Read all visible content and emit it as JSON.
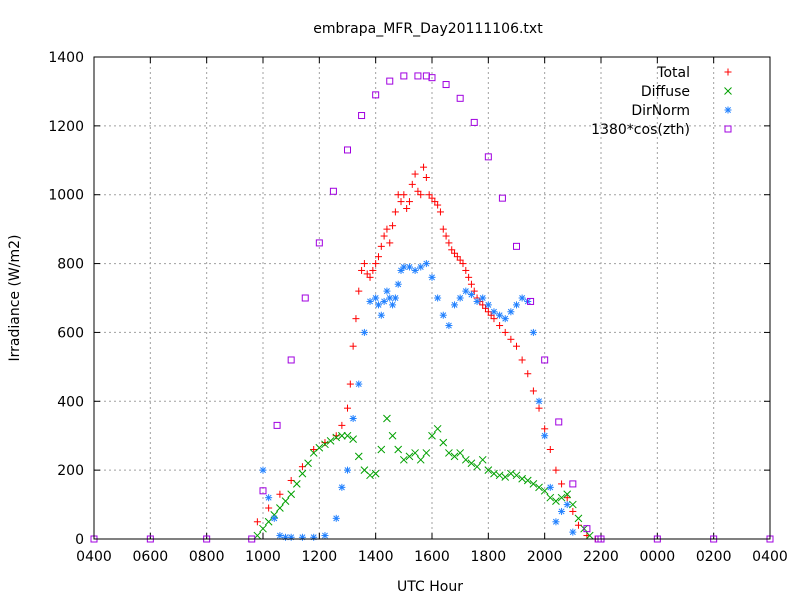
{
  "chart_data": {
    "type": "scatter",
    "title": "embrapa_MFR_Day20111106.txt",
    "xlabel": "UTC Hour",
    "ylabel": "Irradiance (W/m2)",
    "xlim": [
      4,
      28
    ],
    "ylim": [
      0,
      1400
    ],
    "x_ticks": [
      {
        "x": 4,
        "label": "0400"
      },
      {
        "x": 6,
        "label": "0600"
      },
      {
        "x": 8,
        "label": "0800"
      },
      {
        "x": 10,
        "label": "1000"
      },
      {
        "x": 12,
        "label": "1200"
      },
      {
        "x": 14,
        "label": "1400"
      },
      {
        "x": 16,
        "label": "1600"
      },
      {
        "x": 18,
        "label": "1800"
      },
      {
        "x": 20,
        "label": "2000"
      },
      {
        "x": 22,
        "label": "2200"
      },
      {
        "x": 24,
        "label": "0000"
      },
      {
        "x": 26,
        "label": "0200"
      },
      {
        "x": 28,
        "label": "0400"
      }
    ],
    "y_ticks": [
      0,
      200,
      400,
      600,
      800,
      1000,
      1200,
      1400
    ],
    "grid": true,
    "legend_position": "top-right",
    "series": [
      {
        "name": "Total",
        "marker": "+",
        "color": "#ff0000",
        "x": [
          9.8,
          10.2,
          10.6,
          11.0,
          11.4,
          11.8,
          12.2,
          12.6,
          12.8,
          13.0,
          13.1,
          13.2,
          13.3,
          13.4,
          13.5,
          13.6,
          13.7,
          13.8,
          13.9,
          14.0,
          14.1,
          14.2,
          14.3,
          14.4,
          14.5,
          14.6,
          14.7,
          14.8,
          14.9,
          15.0,
          15.1,
          15.2,
          15.3,
          15.4,
          15.5,
          15.6,
          15.7,
          15.8,
          15.9,
          16.0,
          16.1,
          16.2,
          16.3,
          16.4,
          16.5,
          16.6,
          16.7,
          16.8,
          16.9,
          17.0,
          17.1,
          17.2,
          17.3,
          17.4,
          17.5,
          17.6,
          17.7,
          17.8,
          17.9,
          18.0,
          18.1,
          18.2,
          18.4,
          18.6,
          18.8,
          19.0,
          19.2,
          19.4,
          19.6,
          19.8,
          20.0,
          20.2,
          20.4,
          20.6,
          20.8,
          21.0,
          21.2,
          21.5,
          21.8
        ],
        "y": [
          50,
          90,
          130,
          170,
          210,
          260,
          280,
          300,
          330,
          380,
          450,
          560,
          640,
          720,
          780,
          800,
          770,
          760,
          780,
          800,
          820,
          850,
          880,
          900,
          860,
          910,
          950,
          1000,
          980,
          1000,
          960,
          980,
          1030,
          1060,
          1010,
          1000,
          1080,
          1050,
          1000,
          990,
          980,
          970,
          950,
          900,
          880,
          860,
          840,
          830,
          820,
          810,
          800,
          780,
          760,
          740,
          720,
          700,
          690,
          680,
          670,
          660,
          650,
          640,
          620,
          600,
          580,
          560,
          520,
          480,
          430,
          380,
          320,
          260,
          200,
          160,
          120,
          80,
          40,
          10,
          0
        ]
      },
      {
        "name": "Diffuse",
        "marker": "x",
        "color": "#00a000",
        "x": [
          9.8,
          10.0,
          10.2,
          10.4,
          10.6,
          10.8,
          11.0,
          11.2,
          11.4,
          11.6,
          11.8,
          12.0,
          12.2,
          12.4,
          12.6,
          12.8,
          13.0,
          13.2,
          13.4,
          13.6,
          13.8,
          14.0,
          14.2,
          14.4,
          14.6,
          14.8,
          15.0,
          15.2,
          15.4,
          15.6,
          15.8,
          16.0,
          16.2,
          16.4,
          16.6,
          16.8,
          17.0,
          17.2,
          17.4,
          17.6,
          17.8,
          18.0,
          18.2,
          18.4,
          18.6,
          18.8,
          19.0,
          19.2,
          19.4,
          19.6,
          19.8,
          20.0,
          20.2,
          20.4,
          20.6,
          20.8,
          21.0,
          21.2,
          21.4,
          21.6
        ],
        "y": [
          10,
          30,
          50,
          70,
          90,
          110,
          130,
          160,
          190,
          220,
          250,
          265,
          275,
          285,
          295,
          300,
          300,
          290,
          240,
          200,
          185,
          190,
          260,
          350,
          300,
          260,
          230,
          240,
          250,
          230,
          250,
          300,
          320,
          280,
          250,
          240,
          250,
          230,
          220,
          210,
          230,
          200,
          190,
          185,
          180,
          190,
          185,
          175,
          170,
          160,
          150,
          140,
          120,
          110,
          120,
          130,
          100,
          60,
          30,
          10
        ]
      },
      {
        "name": "DirNorm",
        "marker": "*",
        "color": "#2080ff",
        "x": [
          10.0,
          10.2,
          10.4,
          10.6,
          10.8,
          11.0,
          11.4,
          11.8,
          12.2,
          12.6,
          12.8,
          13.0,
          13.2,
          13.4,
          13.6,
          13.8,
          14.0,
          14.1,
          14.2,
          14.3,
          14.4,
          14.5,
          14.6,
          14.7,
          14.8,
          14.9,
          15.0,
          15.2,
          15.4,
          15.6,
          15.8,
          16.0,
          16.2,
          16.4,
          16.6,
          16.8,
          17.0,
          17.2,
          17.4,
          17.6,
          17.8,
          18.0,
          18.2,
          18.4,
          18.6,
          18.8,
          19.0,
          19.2,
          19.4,
          19.6,
          19.8,
          20.0,
          20.2,
          20.4,
          20.6,
          20.8,
          21.0
        ],
        "y": [
          200,
          120,
          60,
          10,
          5,
          5,
          5,
          5,
          10,
          60,
          150,
          200,
          350,
          450,
          600,
          690,
          700,
          680,
          650,
          690,
          720,
          700,
          680,
          700,
          740,
          780,
          790,
          790,
          780,
          790,
          800,
          760,
          700,
          650,
          620,
          680,
          700,
          720,
          710,
          690,
          700,
          680,
          660,
          650,
          640,
          660,
          680,
          700,
          690,
          600,
          400,
          300,
          150,
          50,
          80,
          100,
          20
        ]
      },
      {
        "name": "1380*cos(zth)",
        "marker": "square",
        "color": "#a000e0",
        "x": [
          4.0,
          6.0,
          8.0,
          9.6,
          10.0,
          10.5,
          11.0,
          11.5,
          12.0,
          12.5,
          13.0,
          13.5,
          14.0,
          14.5,
          15.0,
          15.5,
          15.8,
          16.0,
          16.5,
          17.0,
          17.5,
          18.0,
          18.5,
          19.0,
          19.5,
          20.0,
          20.5,
          21.0,
          21.5,
          21.9,
          22.0,
          24.0,
          26.0,
          28.0
        ],
        "y": [
          0,
          0,
          0,
          0,
          140,
          330,
          520,
          700,
          860,
          1010,
          1130,
          1230,
          1290,
          1330,
          1345,
          1345,
          1345,
          1340,
          1320,
          1280,
          1210,
          1110,
          990,
          850,
          690,
          520,
          340,
          160,
          30,
          0,
          0,
          0,
          0,
          0
        ]
      }
    ]
  }
}
